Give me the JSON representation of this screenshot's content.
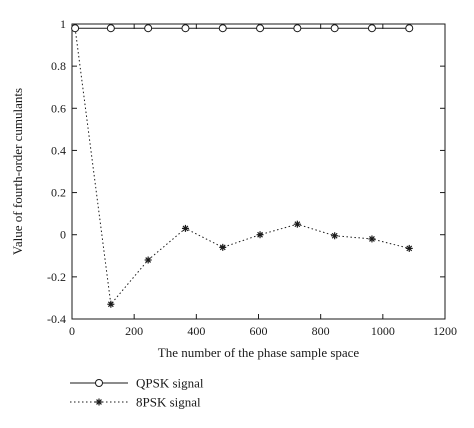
{
  "chart_data": {
    "type": "line",
    "xlabel": "The number of the phase sample space",
    "ylabel": "Value of fourth-order cumulants",
    "xlim": [
      0,
      1200
    ],
    "ylim": [
      -0.4,
      1
    ],
    "xticks": [
      0,
      200,
      400,
      600,
      800,
      1000,
      1200
    ],
    "yticks": [
      -0.4,
      -0.2,
      0,
      0.2,
      0.4,
      0.6,
      0.8,
      1
    ],
    "xtick_labels": [
      "0",
      "200",
      "400",
      "600",
      "800",
      "1000",
      "1200"
    ],
    "ytick_labels": [
      "-0.4",
      "-0.2",
      "0",
      "0.2",
      "0.4",
      "0.6",
      "0.8",
      "1"
    ],
    "grid": false,
    "legend_position": "below-left",
    "series": [
      {
        "name": "QPSK signal",
        "line_style": "solid",
        "marker": "circle",
        "color": "#1a1a1a",
        "x": [
          10,
          125,
          245,
          365,
          485,
          605,
          725,
          845,
          965,
          1085
        ],
        "y": [
          0.98,
          0.98,
          0.98,
          0.98,
          0.98,
          0.98,
          0.98,
          0.98,
          0.98,
          0.98
        ]
      },
      {
        "name": "8PSK signal",
        "line_style": "dotted",
        "marker": "asterisk",
        "color": "#1a1a1a",
        "x": [
          10,
          125,
          245,
          365,
          485,
          605,
          725,
          845,
          965,
          1085
        ],
        "y": [
          0.98,
          -0.33,
          -0.12,
          0.03,
          -0.06,
          0.0,
          0.05,
          -0.005,
          -0.02,
          -0.065
        ]
      }
    ]
  }
}
